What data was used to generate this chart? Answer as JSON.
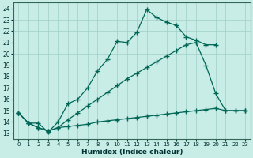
{
  "xlabel": "Humidex (Indice chaleur)",
  "xlim": [
    -0.5,
    23.5
  ],
  "ylim": [
    12.5,
    24.5
  ],
  "xticks": [
    0,
    1,
    2,
    3,
    4,
    5,
    6,
    7,
    8,
    9,
    10,
    11,
    12,
    13,
    14,
    15,
    16,
    17,
    18,
    19,
    20,
    21,
    22,
    23
  ],
  "yticks": [
    13,
    14,
    15,
    16,
    17,
    18,
    19,
    20,
    21,
    22,
    23,
    24
  ],
  "background_color": "#c8ece6",
  "grid_color": "#a0cec8",
  "line_color": "#006655",
  "curve1_x": [
    0,
    1,
    2,
    3,
    4,
    5,
    6,
    7,
    8,
    9,
    10,
    11,
    12,
    13,
    14,
    15,
    16,
    17,
    18,
    19,
    20
  ],
  "curve1_y": [
    14.8,
    13.9,
    13.9,
    13.1,
    14.0,
    15.6,
    16.0,
    17.0,
    18.5,
    19.5,
    21.1,
    21.0,
    21.9,
    23.9,
    23.2,
    22.8,
    22.5,
    21.5,
    21.2,
    20.8,
    20.8
  ],
  "curve2_x": [
    0,
    1,
    2,
    3,
    4,
    5,
    6,
    7,
    8,
    9,
    10,
    11,
    12,
    13,
    14,
    15,
    16,
    17,
    18,
    19,
    20,
    21,
    22,
    23
  ],
  "curve2_y": [
    14.8,
    13.9,
    13.5,
    13.2,
    13.5,
    14.2,
    14.8,
    15.4,
    16.0,
    16.6,
    17.2,
    17.8,
    18.3,
    18.8,
    19.3,
    19.8,
    20.3,
    20.8,
    21.0,
    19.0,
    16.5,
    15.0,
    15.0,
    15.0
  ],
  "curve3_x": [
    0,
    1,
    2,
    3,
    4,
    5,
    6,
    7,
    8,
    9,
    10,
    11,
    12,
    13,
    14,
    15,
    16,
    17,
    18,
    19,
    20,
    21,
    22,
    23
  ],
  "curve3_y": [
    14.8,
    13.9,
    13.5,
    13.2,
    13.5,
    13.6,
    13.7,
    13.8,
    14.0,
    14.1,
    14.2,
    14.3,
    14.4,
    14.5,
    14.6,
    14.7,
    14.8,
    14.9,
    15.0,
    15.1,
    15.2,
    15.0,
    15.0,
    15.0
  ]
}
